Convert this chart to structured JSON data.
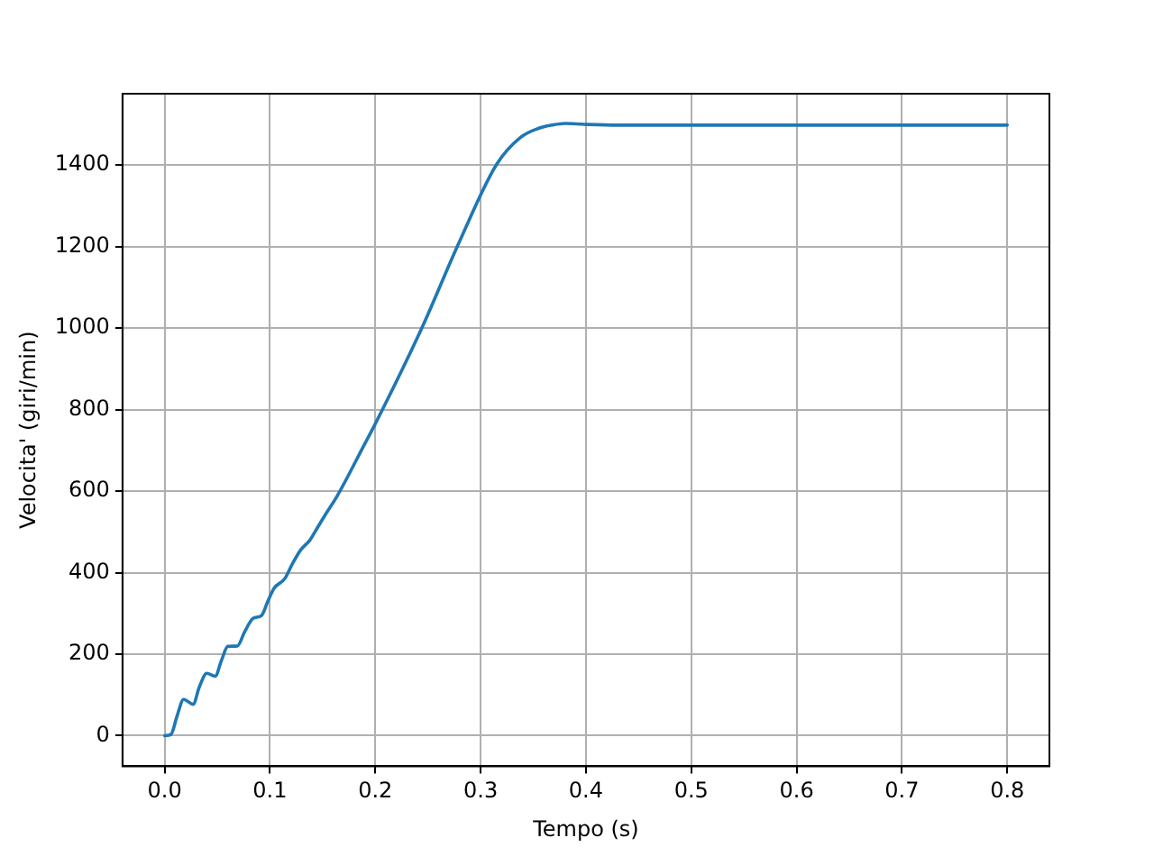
{
  "chart_data": {
    "type": "line",
    "xlabel": "Tempo (s)",
    "ylabel": "Velocita' (giri/min)",
    "xlim": [
      -0.04,
      0.84
    ],
    "ylim": [
      -75,
      1575
    ],
    "xticks": [
      {
        "value": 0,
        "label": "0.0"
      },
      0.1,
      0.2,
      0.3,
      0.4,
      0.5,
      0.6,
      0.7,
      0.8
    ],
    "yticks": [
      0,
      200,
      400,
      600,
      800,
      1000,
      1200,
      1400
    ],
    "grid": true,
    "legend": false,
    "marker": "none",
    "line_style": "solid",
    "series": [
      {
        "color": "#1f77b4",
        "x": [
          0,
          0.006,
          0.012,
          0.018,
          0.027,
          0.033,
          0.04,
          0.048,
          0.054,
          0.06,
          0.069,
          0.076,
          0.084,
          0.092,
          0.098,
          0.104,
          0.114,
          0.121,
          0.129,
          0.138,
          0.145,
          0.152,
          0.164,
          0.19,
          0.199,
          0.244,
          0.279,
          0.315,
          0.338,
          0.355,
          0.368,
          0.38,
          0.398,
          0.43,
          0.5,
          0.6,
          0.7,
          0.8
        ],
        "values": [
          0,
          3,
          50,
          89,
          77,
          120,
          153,
          146,
          185,
          219,
          220,
          255,
          288,
          295,
          330,
          362,
          385,
          420,
          455,
          480,
          510,
          540,
          589,
          716,
          760,
          999,
          1207,
          1401,
          1468,
          1490,
          1498,
          1502,
          1500,
          1498,
          1498,
          1498,
          1498,
          1498
        ]
      }
    ]
  }
}
